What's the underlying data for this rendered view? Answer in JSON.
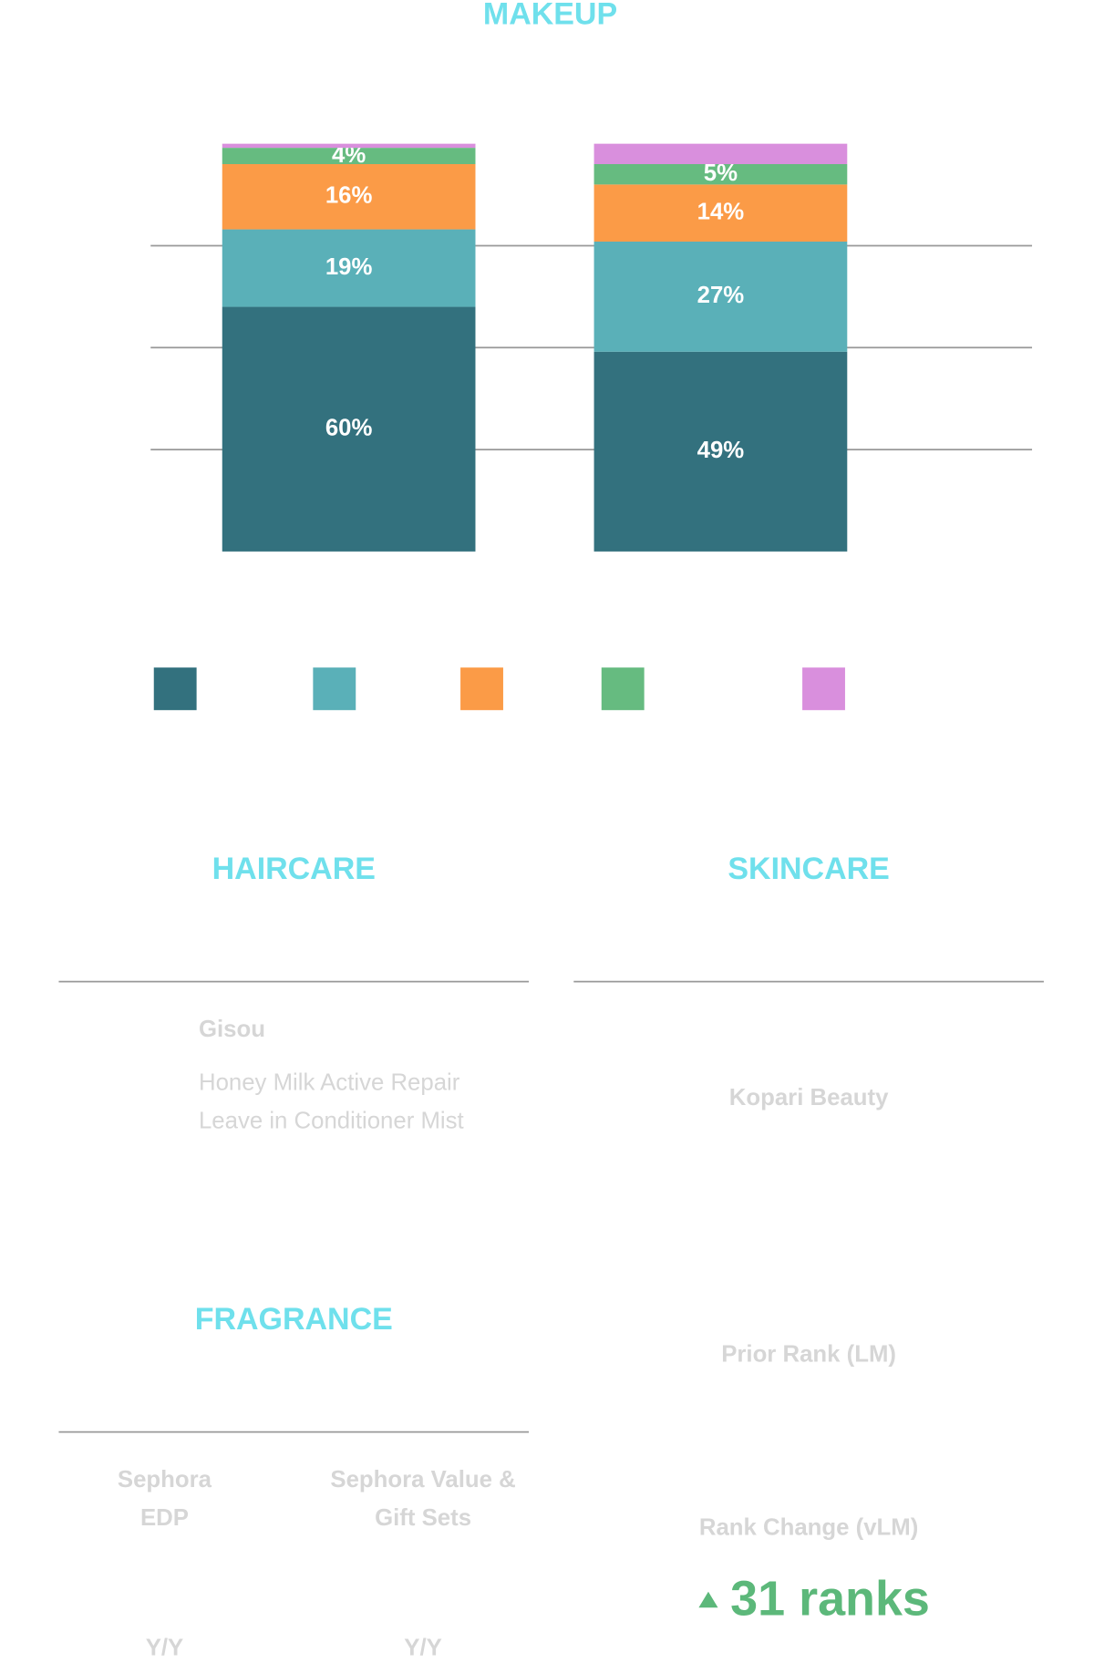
{
  "chart_data": {
    "type": "stacked_bar",
    "title": "MAKEUP",
    "categories": [
      null,
      null
    ],
    "series": [
      {
        "color": "#33717e",
        "values": [
          60,
          49
        ],
        "value_labels": [
          "60%",
          "49%"
        ]
      },
      {
        "color": "#5ab0b8",
        "values": [
          19,
          27
        ],
        "value_labels": [
          "19%",
          "27%"
        ]
      },
      {
        "color": "#fb9b47",
        "values": [
          16,
          14
        ],
        "value_labels": [
          "16%",
          "14%"
        ]
      },
      {
        "color": "#66bb80",
        "values": [
          4,
          5
        ],
        "value_labels": [
          "4%",
          "5%"
        ]
      },
      {
        "color": "#d98fdd",
        "values": [
          1,
          5
        ]
      }
    ],
    "ylim": [
      0,
      100
    ],
    "yticks": [
      25,
      50,
      75
    ],
    "grid": true
  },
  "haircare": {
    "title": "HAIRCARE",
    "brand": "Gisou",
    "product": [
      "Honey Milk Active Repair",
      "Leave in Conditioner Mist"
    ]
  },
  "skincare": {
    "title": "SKINCARE",
    "brand": "Kopari Beauty",
    "prior_rank_label": "Prior Rank (LM)",
    "rank_change_label": "Rank Change (vLM)",
    "rank_change": "31 ranks"
  },
  "fragrance": {
    "title": "FRAGRANCE",
    "columns": [
      {
        "name": [
          "Sephora",
          "EDP"
        ],
        "metric": "Y/Y"
      },
      {
        "name": [
          "Sephora Value &",
          "Gift Sets"
        ],
        "metric": "Y/Y"
      }
    ]
  }
}
